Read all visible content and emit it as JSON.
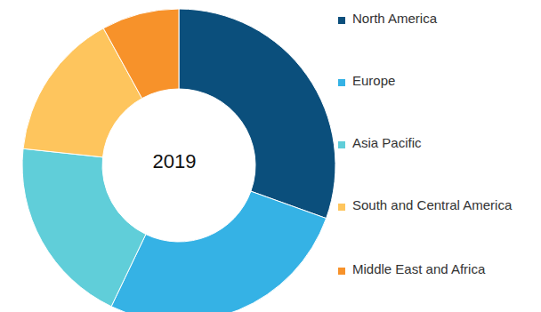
{
  "chart_data": {
    "type": "pie",
    "title": "2019",
    "categories": [
      "North America",
      "Europe",
      "Asia Pacific",
      "South and Central America",
      "Middle East and Africa"
    ],
    "values": [
      30.5,
      26.6,
      19.6,
      15.3,
      8.0
    ],
    "colors": [
      "#0b4f7c",
      "#35b2e5",
      "#60ced9",
      "#fec55d",
      "#f7922a"
    ],
    "legend": "right"
  }
}
